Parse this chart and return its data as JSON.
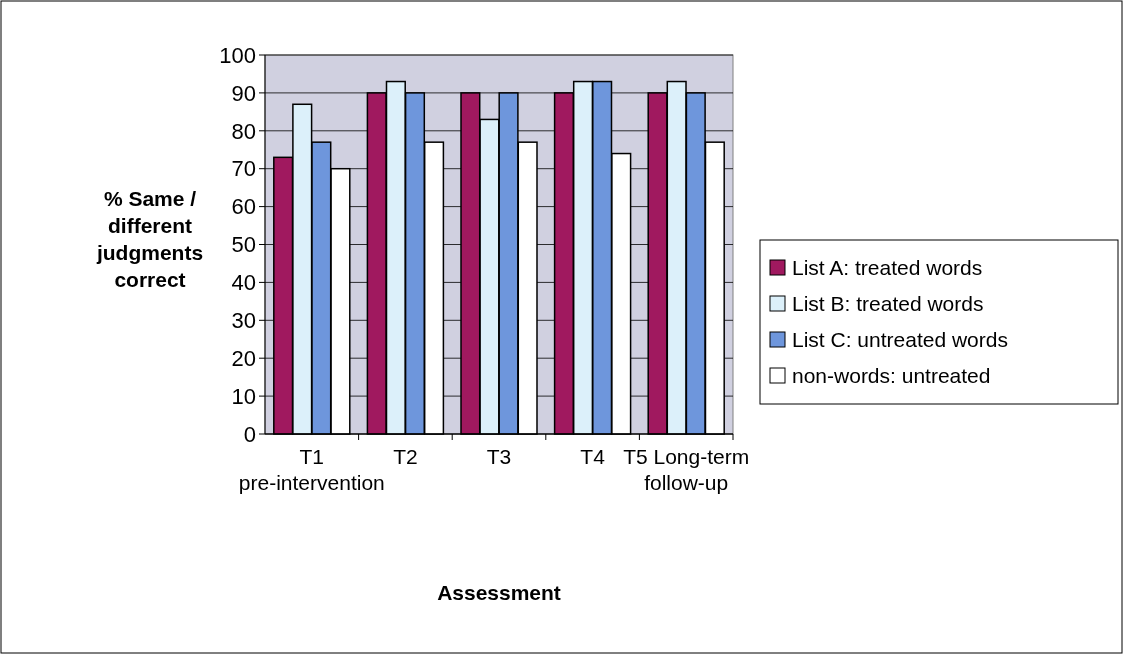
{
  "chart_data": {
    "type": "bar",
    "xlabel": "Assessment",
    "ylabel": "% Same / different judgments correct",
    "categories": [
      "T1 pre-intervention",
      "T2",
      "T3",
      "T4",
      "T5 Long-term follow-up"
    ],
    "series": [
      {
        "name": "List A: treated words",
        "color": "#a0195f",
        "values": [
          73,
          90,
          90,
          90,
          90
        ]
      },
      {
        "name": "List B: treated words",
        "color": "#dcf0fa",
        "values": [
          87,
          93,
          83,
          93,
          93
        ]
      },
      {
        "name": "List C: untreated words",
        "color": "#6e96dc",
        "values": [
          77,
          90,
          90,
          93,
          90
        ]
      },
      {
        "name": "non-words: untreated",
        "color": "#ffffff",
        "values": [
          70,
          77,
          77,
          74,
          77
        ]
      }
    ],
    "ylim": [
      0,
      100
    ],
    "yticks": [
      0,
      10,
      20,
      30,
      40,
      50,
      60,
      70,
      80,
      90,
      100
    ],
    "grid": "y",
    "legend": "right"
  }
}
